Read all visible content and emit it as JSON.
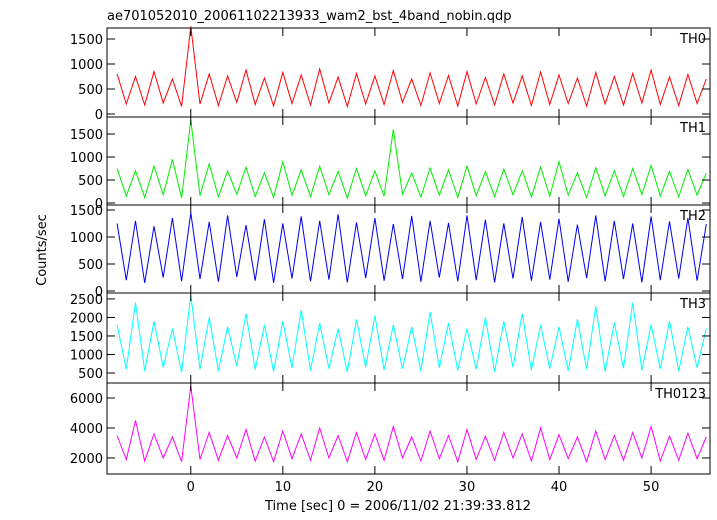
{
  "title": "ae701052010_20061102213933_wam2_bst_4band_nobin.qdp",
  "y_label": "Counts/sec",
  "x_label": "Time [sec] 0 = 2006/11/02 21:39:33.812",
  "chart_data": [
    {
      "type": "line",
      "label": "TH0",
      "color": "#ff0000",
      "xlim": [
        -9.1,
        56.4
      ],
      "xticks": [
        0,
        10,
        20,
        30,
        40,
        50
      ],
      "ylim": [
        -60,
        1720
      ],
      "yticks": [
        0,
        500,
        1000,
        1500
      ],
      "x": [
        -8,
        -7,
        -6,
        -5,
        -4,
        -3,
        -2,
        -1,
        0,
        1,
        2,
        3,
        4,
        5,
        6,
        7,
        8,
        9,
        10,
        11,
        12,
        13,
        14,
        15,
        16,
        17,
        18,
        19,
        20,
        21,
        22,
        23,
        24,
        25,
        26,
        27,
        28,
        29,
        30,
        31,
        32,
        33,
        34,
        35,
        36,
        37,
        38,
        39,
        40,
        41,
        42,
        43,
        44,
        45,
        46,
        47,
        48,
        49,
        50,
        51,
        52,
        53,
        54,
        55,
        56
      ],
      "values": [
        800,
        200,
        750,
        180,
        850,
        220,
        700,
        150,
        1750,
        200,
        800,
        170,
        760,
        230,
        880,
        190,
        720,
        160,
        830,
        210,
        780,
        180,
        900,
        220,
        740,
        150,
        810,
        200,
        760,
        190,
        870,
        230,
        700,
        170,
        820,
        210,
        770,
        160,
        850,
        200,
        730,
        180,
        800,
        220,
        760,
        170,
        840,
        190,
        780,
        210,
        720,
        160,
        830,
        200,
        750,
        180,
        810,
        220,
        880,
        190,
        740,
        170,
        790,
        210,
        700
      ]
    },
    {
      "type": "line",
      "label": "TH1",
      "color": "#00ee00",
      "xlim": [
        -9.1,
        56.4
      ],
      "xticks": [
        0,
        10,
        20,
        30,
        40,
        50
      ],
      "ylim": [
        -43,
        1870
      ],
      "yticks": [
        0,
        500,
        1000,
        1500
      ],
      "x": [
        -8,
        -7,
        -6,
        -5,
        -4,
        -3,
        -2,
        -1,
        0,
        1,
        2,
        3,
        4,
        5,
        6,
        7,
        8,
        9,
        10,
        11,
        12,
        13,
        14,
        15,
        16,
        17,
        18,
        19,
        20,
        21,
        22,
        23,
        24,
        25,
        26,
        27,
        28,
        29,
        30,
        31,
        32,
        33,
        34,
        35,
        36,
        37,
        38,
        39,
        40,
        41,
        42,
        43,
        44,
        45,
        46,
        47,
        48,
        49,
        50,
        51,
        52,
        53,
        54,
        55,
        56
      ],
      "values": [
        750,
        150,
        700,
        120,
        800,
        180,
        950,
        110,
        1800,
        160,
        850,
        130,
        700,
        190,
        780,
        140,
        660,
        120,
        900,
        170,
        720,
        140,
        800,
        180,
        690,
        110,
        750,
        160,
        700,
        150,
        1600,
        190,
        650,
        130,
        760,
        170,
        720,
        120,
        800,
        160,
        680,
        140,
        740,
        180,
        700,
        130,
        780,
        150,
        900,
        170,
        660,
        120,
        770,
        160,
        700,
        140,
        750,
        180,
        820,
        150,
        690,
        130,
        730,
        170,
        650
      ]
    },
    {
      "type": "line",
      "label": "TH2",
      "color": "#0000ee",
      "xlim": [
        -9.1,
        56.4
      ],
      "xticks": [
        0,
        10,
        20,
        30,
        40,
        50
      ],
      "ylim": [
        -37,
        1593
      ],
      "yticks": [
        0,
        500,
        1000,
        1500
      ],
      "x": [
        -8,
        -7,
        -6,
        -5,
        -4,
        -3,
        -2,
        -1,
        0,
        1,
        2,
        3,
        4,
        5,
        6,
        7,
        8,
        9,
        10,
        11,
        12,
        13,
        14,
        15,
        16,
        17,
        18,
        19,
        20,
        21,
        22,
        23,
        24,
        25,
        26,
        27,
        28,
        29,
        30,
        31,
        32,
        33,
        34,
        35,
        36,
        37,
        38,
        39,
        40,
        41,
        42,
        43,
        44,
        45,
        46,
        47,
        48,
        49,
        50,
        51,
        52,
        53,
        54,
        55,
        56
      ],
      "values": [
        1250,
        200,
        1300,
        150,
        1200,
        250,
        1350,
        180,
        1450,
        220,
        1280,
        170,
        1400,
        260,
        1220,
        190,
        1330,
        150,
        1250,
        230,
        1380,
        180,
        1300,
        210,
        1420,
        160,
        1270,
        240,
        1350,
        190,
        1240,
        220,
        1390,
        170,
        1300,
        250,
        1260,
        180,
        1400,
        200,
        1320,
        160,
        1250,
        230,
        1370,
        190,
        1280,
        210,
        1340,
        170,
        1230,
        240,
        1400,
        180,
        1300,
        220,
        1250,
        160,
        1380,
        200,
        1290,
        230,
        1350,
        190,
        1240
      ]
    },
    {
      "type": "line",
      "label": "TH3",
      "color": "#00ffff",
      "xlim": [
        -9.1,
        56.4
      ],
      "xticks": [
        0,
        10,
        20,
        30,
        40,
        50
      ],
      "ylim": [
        230,
        2660
      ],
      "yticks": [
        500,
        1000,
        1500,
        2000,
        2500
      ],
      "x": [
        -8,
        -7,
        -6,
        -5,
        -4,
        -3,
        -2,
        -1,
        0,
        1,
        2,
        3,
        4,
        5,
        6,
        7,
        8,
        9,
        10,
        11,
        12,
        13,
        14,
        15,
        16,
        17,
        18,
        19,
        20,
        21,
        22,
        23,
        24,
        25,
        26,
        27,
        28,
        29,
        30,
        31,
        32,
        33,
        34,
        35,
        36,
        37,
        38,
        39,
        40,
        41,
        42,
        43,
        44,
        45,
        46,
        47,
        48,
        49,
        50,
        51,
        52,
        53,
        54,
        55,
        56
      ],
      "values": [
        1800,
        600,
        2400,
        550,
        1900,
        650,
        1700,
        520,
        2600,
        600,
        2000,
        560,
        1750,
        680,
        2100,
        590,
        1800,
        540,
        1900,
        640,
        2200,
        570,
        1850,
        620,
        1700,
        530,
        1950,
        660,
        2050,
        580,
        1800,
        610,
        1750,
        550,
        2150,
        640,
        1850,
        570,
        1700,
        600,
        2000,
        530,
        1900,
        650,
        2100,
        580,
        1800,
        620,
        1750,
        560,
        1950,
        600,
        2300,
        540,
        1850,
        630,
        2400,
        570,
        1800,
        610,
        1900,
        550,
        1750,
        640,
        1700
      ]
    },
    {
      "type": "line",
      "label": "TH0123",
      "color": "#ff00ff",
      "xlim": [
        -9.1,
        56.4
      ],
      "xticks": [
        0,
        10,
        20,
        30,
        40,
        50
      ],
      "ylim": [
        930,
        7000
      ],
      "yticks": [
        2000,
        4000,
        6000
      ],
      "x": [
        -8,
        -7,
        -6,
        -5,
        -4,
        -3,
        -2,
        -1,
        0,
        1,
        2,
        3,
        4,
        5,
        6,
        7,
        8,
        9,
        10,
        11,
        12,
        13,
        14,
        15,
        16,
        17,
        18,
        19,
        20,
        21,
        22,
        23,
        24,
        25,
        26,
        27,
        28,
        29,
        30,
        31,
        32,
        33,
        34,
        35,
        36,
        37,
        38,
        39,
        40,
        41,
        42,
        43,
        44,
        45,
        46,
        47,
        48,
        49,
        50,
        51,
        52,
        53,
        54,
        55,
        56
      ],
      "values": [
        3500,
        1900,
        4500,
        1800,
        3600,
        2000,
        3400,
        1750,
        6800,
        1900,
        3700,
        1850,
        3500,
        2000,
        3900,
        1800,
        3400,
        1750,
        3800,
        1950,
        3600,
        1850,
        4000,
        2000,
        3500,
        1750,
        3700,
        1900,
        3600,
        1850,
        4100,
        2000,
        3400,
        1800,
        3800,
        1950,
        3500,
        1750,
        3900,
        1900,
        3450,
        1850,
        3700,
        2000,
        3600,
        1800,
        4000,
        1900,
        3550,
        1950,
        3400,
        1750,
        3800,
        1900,
        3500,
        1850,
        3700,
        2000,
        4100,
        1800,
        3450,
        1850,
        3650,
        1950,
        3400
      ]
    }
  ]
}
